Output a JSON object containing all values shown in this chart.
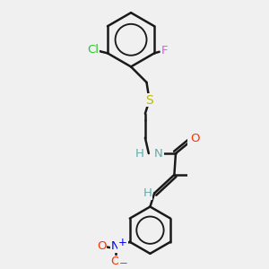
{
  "background_color": "#f0f0f0",
  "bond_color": "#1a1a1a",
  "bond_width": 1.8,
  "atoms": {
    "Cl": {
      "color": "#22cc22"
    },
    "F": {
      "color": "#ff44ff"
    },
    "S": {
      "color": "#bbbb00"
    },
    "NH": {
      "color": "#66aaaa"
    },
    "H": {
      "color": "#66aaaa"
    },
    "O": {
      "color": "#ff3300"
    },
    "N+": {
      "color": "#0000ee"
    },
    "O-": {
      "color": "#ff3300"
    }
  },
  "fs": 9.5
}
